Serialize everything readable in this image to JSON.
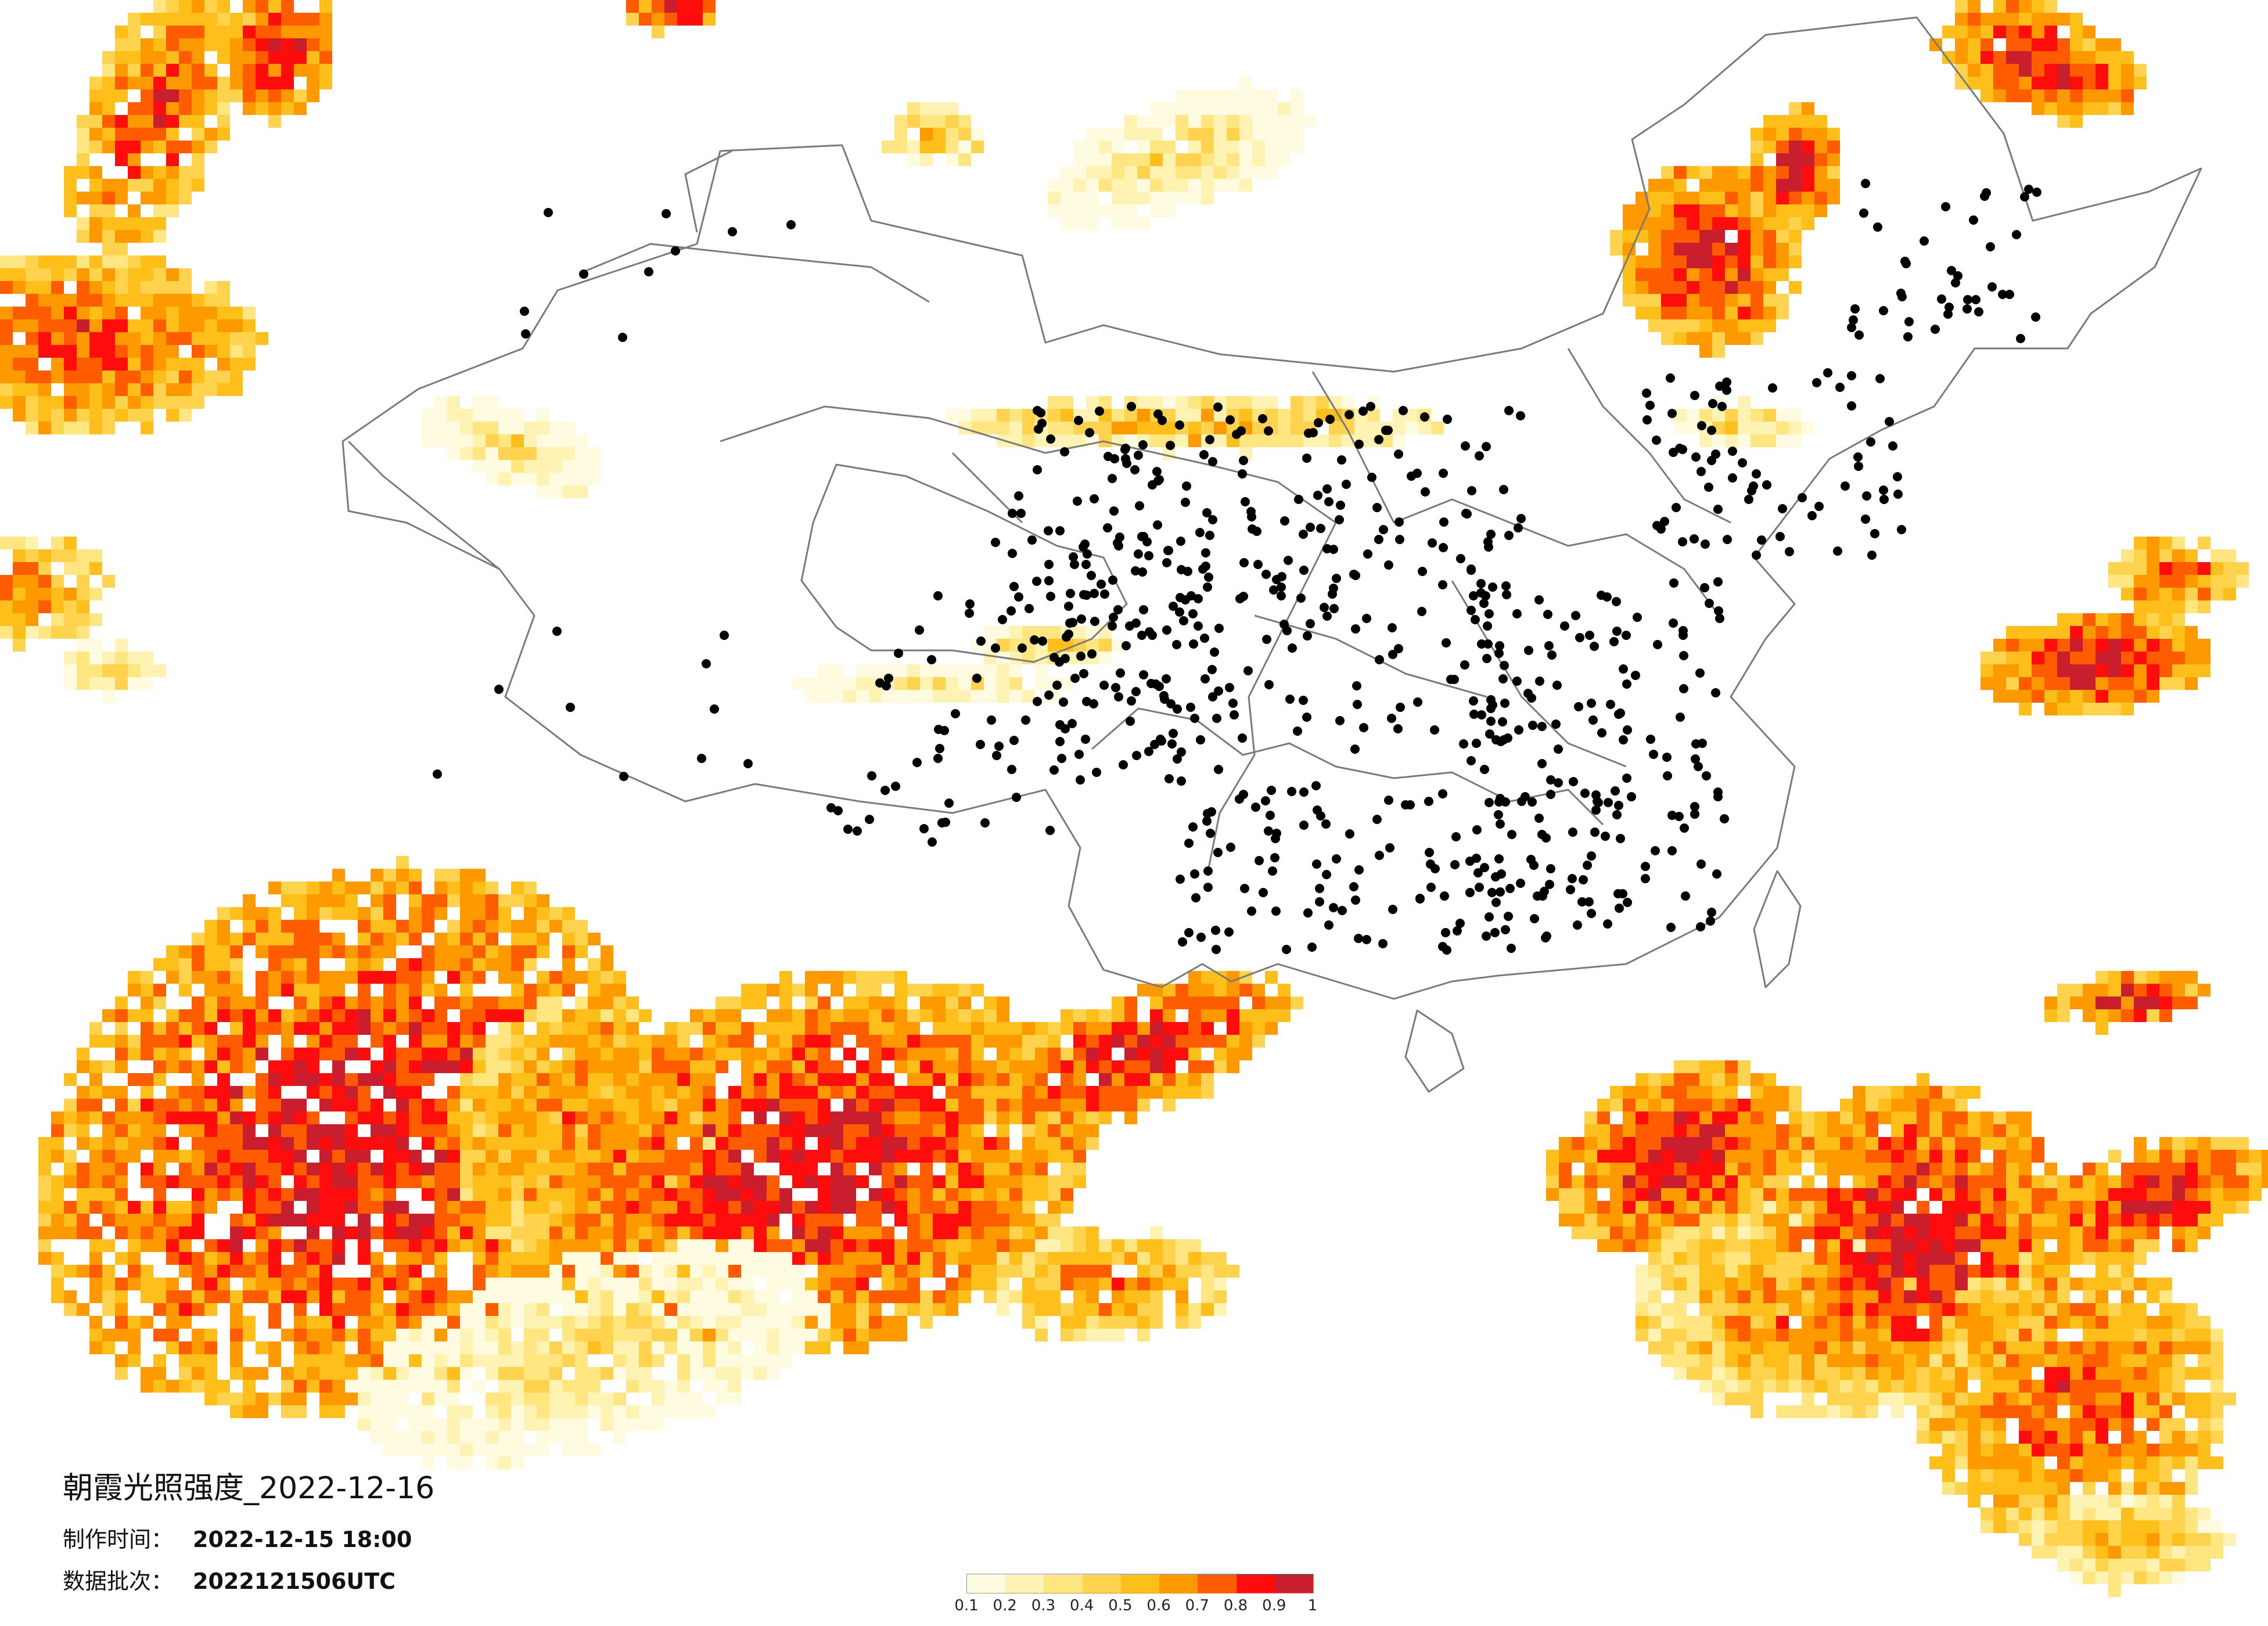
{
  "map": {
    "title": "朝霞光照强度_2022-12-16",
    "made_label": "制作时间：",
    "made_value": "2022-12-15 18:00",
    "batch_label": "数据批次：",
    "batch_value": "2022121506UTC",
    "legend": {
      "colors": [
        "#fffbe0",
        "#fff3b3",
        "#ffe680",
        "#ffd34d",
        "#ffbf1a",
        "#ff9900",
        "#ff5c00",
        "#ff0d0d",
        "#c81e2d"
      ],
      "ticks": [
        "0.1",
        "0.2",
        "0.3",
        "0.4",
        "0.5",
        "0.6",
        "0.7",
        "0.8",
        "0.9",
        "1"
      ]
    }
  }
}
